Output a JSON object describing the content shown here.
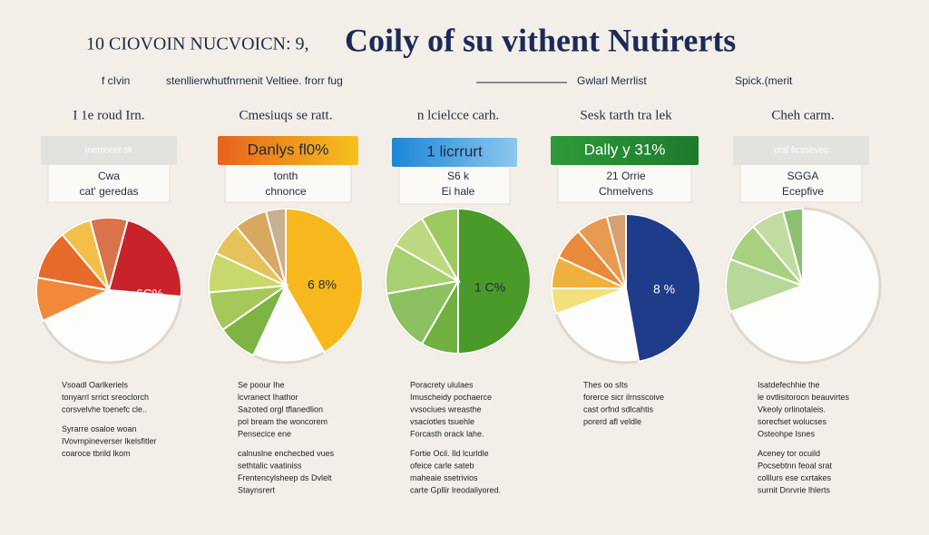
{
  "header": {
    "title_small": "10 CIOVOIN NUCVOICN: 9,",
    "title_large": "Coily of su vithent Nutirerts",
    "subtitle": [
      "f cIvin",
      "stenllierwhutfnrnenit Veltiee. frorr fug",
      "Gwlarl Merrlist",
      "Spick.(merit"
    ]
  },
  "columns": [
    {
      "heading": "I 1e roud Irn.",
      "badge": "inerreeet sk",
      "sub": [
        "Cwa",
        "cat' geredas"
      ],
      "pie_label": "6C%",
      "notes": [
        "Vsoadl Oarlkeriels",
        "tonyarrl srrict sreoclorch",
        "corsvelvhe toenefc cle..",
        "Syrarre osaloe woan",
        "IVovmpineverser lkelsfitler",
        "coaroce tbrild lkom"
      ]
    },
    {
      "heading": "Cmesiuqs se ratt.",
      "badge": "Danlys fl0%",
      "sub": [
        "tonth",
        "chnonce"
      ],
      "pie_label": "6 8%",
      "notes": [
        "Se poour Ihe",
        "lcvranect Ihathor",
        "Sazoted orgl tflanedlion",
        "pol bream the woncorem",
        "Pensecice ene",
        "calnuslne enchecbed vues",
        "sethtalic vaatiniss",
        "Frentencylsheep ds Dvlelt",
        "Staynsrert"
      ]
    },
    {
      "heading": "n lcielcce carh.",
      "badge": "1  licrrurt",
      "sub": [
        "S6 k",
        "Ei hale"
      ],
      "pie_label": "1 C%",
      "notes": [
        "Poracrety ululaes",
        "Imuscheidy pochaerce",
        "vvsociues wreasthe",
        "vsaciotles tsuehle",
        "Forcasth orack lahe.",
        "Fortie Ocil. Ild lcurldle",
        "ofeice carle sateb",
        "maheaie ssetrivios",
        "carte Gpllir lreodaliyored."
      ]
    },
    {
      "heading": "Sesk tarth tra lek",
      "badge": "Dally y 31%",
      "sub": [
        "21 Orrie",
        "Chmelvens"
      ],
      "pie_label": "8 %",
      "notes": [
        "Thes oo sIts",
        "forerce sicr ilrnsscoive",
        "cast orfnd sdlcahtis",
        "porerd afl veldle"
      ]
    },
    {
      "heading": "Cheh carm.",
      "badge": "cral  ficssevec",
      "sub": [
        "SGGA",
        "Ecepfive"
      ],
      "notes": [
        "Isatdefechhie the",
        "le ovtlisitorocn beauvirtes",
        "Vkeoly orlinotaleis.",
        "sorecfset wolucses",
        "Osteohpe Isnes",
        "Aceney tor ocuild",
        "Pocsebtnn feoal srat",
        "colllurs ese cxrtakes",
        "surnit Dnrvrie lhlerts"
      ]
    }
  ]
}
